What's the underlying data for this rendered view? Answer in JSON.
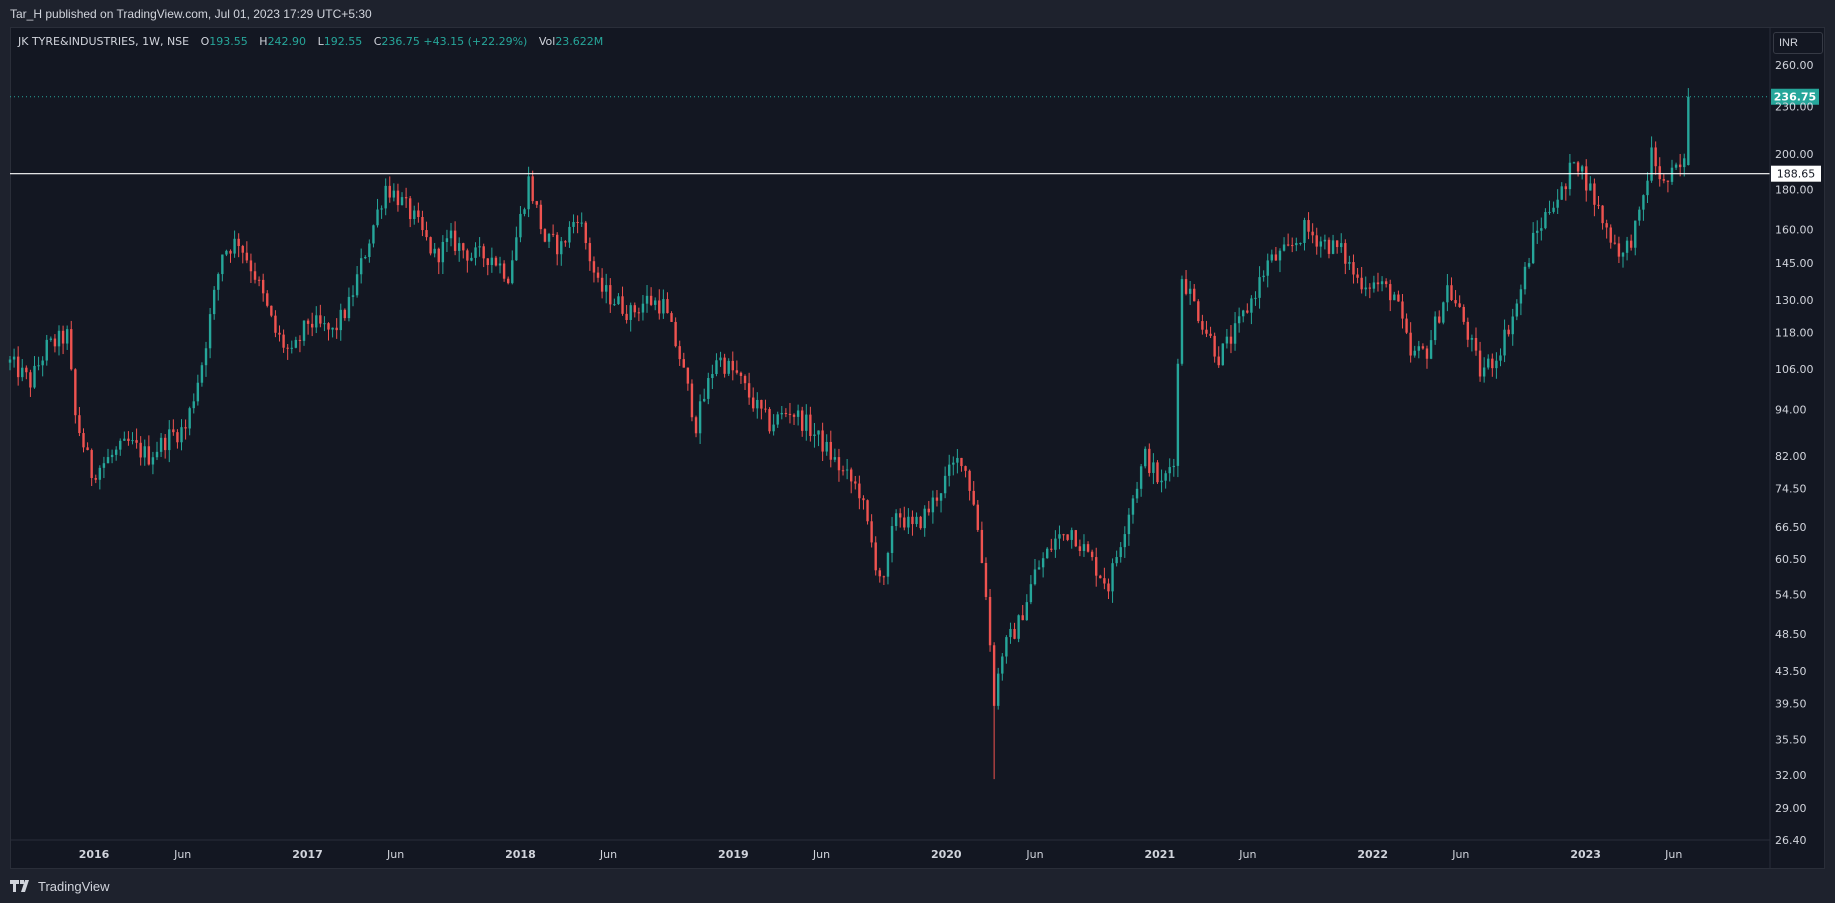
{
  "header": {
    "published_text": "Tar_H published on TradingView.com, Jul 01, 2023 17:29 UTC+5:30"
  },
  "legend": {
    "symbol": "JK TYRE&INDUSTRIES, 1W, NSE",
    "open_label": "O",
    "open": "193.55",
    "high_label": "H",
    "high": "242.90",
    "low_label": "L",
    "low": "192.55",
    "close_label": "C",
    "close": "236.75",
    "change": "+43.15 (+22.29%)",
    "vol_label": "Vol",
    "volume": "23.622M"
  },
  "currency_button": "INR",
  "footer": {
    "brand": "TradingView"
  },
  "colors": {
    "up": "#26a69a",
    "down": "#ef5350",
    "background": "#131722",
    "frame": "#1e222d",
    "text": "#d1d4dc"
  },
  "chart_data": {
    "type": "candlestick",
    "scale": "log",
    "symbol": "JK TYRE&INDUSTRIES",
    "interval": "1W",
    "exchange": "NSE",
    "currency": "INR",
    "ylim": [
      26.4,
      290
    ],
    "y_ticks": [
      "260.00",
      "230.00",
      "200.00",
      "180.00",
      "160.00",
      "145.00",
      "130.00",
      "118.00",
      "106.00",
      "94.00",
      "82.00",
      "74.50",
      "66.50",
      "60.50",
      "54.50",
      "48.50",
      "43.50",
      "39.50",
      "35.50",
      "32.00",
      "29.00",
      "26.40"
    ],
    "x_ticks": [
      {
        "label": "2016",
        "bold": true,
        "date": "2016-01-01"
      },
      {
        "label": "Jun",
        "bold": false,
        "date": "2016-06-01"
      },
      {
        "label": "2017",
        "bold": true,
        "date": "2017-01-01"
      },
      {
        "label": "Jun",
        "bold": false,
        "date": "2017-06-01"
      },
      {
        "label": "2018",
        "bold": true,
        "date": "2018-01-01"
      },
      {
        "label": "Jun",
        "bold": false,
        "date": "2018-06-01"
      },
      {
        "label": "2019",
        "bold": true,
        "date": "2019-01-01"
      },
      {
        "label": "Jun",
        "bold": false,
        "date": "2019-06-01"
      },
      {
        "label": "2020",
        "bold": true,
        "date": "2020-01-01"
      },
      {
        "label": "Jun",
        "bold": false,
        "date": "2020-06-01"
      },
      {
        "label": "2021",
        "bold": true,
        "date": "2021-01-01"
      },
      {
        "label": "Jun",
        "bold": false,
        "date": "2021-06-01"
      },
      {
        "label": "2022",
        "bold": true,
        "date": "2022-01-01"
      },
      {
        "label": "Jun",
        "bold": false,
        "date": "2022-06-01"
      },
      {
        "label": "2023",
        "bold": true,
        "date": "2023-01-01"
      },
      {
        "label": "Jun",
        "bold": false,
        "date": "2023-06-01"
      }
    ],
    "x_range": [
      "2015-08-10",
      "2023-11-13"
    ],
    "horizontal_line": {
      "value": 188.65,
      "label": "188.65"
    },
    "last_price": {
      "value": 236.75,
      "label": "236.75"
    },
    "close_path": [
      {
        "date": "2015-08-10",
        "close": 108
      },
      {
        "date": "2015-09-14",
        "close": 102
      },
      {
        "date": "2015-10-12",
        "close": 113
      },
      {
        "date": "2015-11-16",
        "close": 117
      },
      {
        "date": "2015-11-30",
        "close": 92
      },
      {
        "date": "2015-12-28",
        "close": 78
      },
      {
        "date": "2016-02-01",
        "close": 82
      },
      {
        "date": "2016-02-29",
        "close": 85
      },
      {
        "date": "2016-04-04",
        "close": 82
      },
      {
        "date": "2016-05-09",
        "close": 87
      },
      {
        "date": "2016-06-06",
        "close": 89
      },
      {
        "date": "2016-07-04",
        "close": 108
      },
      {
        "date": "2016-08-08",
        "close": 150
      },
      {
        "date": "2016-09-05",
        "close": 155
      },
      {
        "date": "2016-10-03",
        "close": 140
      },
      {
        "date": "2016-11-07",
        "close": 118
      },
      {
        "date": "2016-12-05",
        "close": 110
      },
      {
        "date": "2017-01-02",
        "close": 122
      },
      {
        "date": "2017-02-13",
        "close": 118
      },
      {
        "date": "2017-03-13",
        "close": 128
      },
      {
        "date": "2017-04-10",
        "close": 150
      },
      {
        "date": "2017-05-15",
        "close": 182
      },
      {
        "date": "2017-06-05",
        "close": 176
      },
      {
        "date": "2017-07-03",
        "close": 165
      },
      {
        "date": "2017-08-07",
        "close": 148
      },
      {
        "date": "2017-09-04",
        "close": 155
      },
      {
        "date": "2017-10-09",
        "close": 148
      },
      {
        "date": "2017-11-13",
        "close": 148
      },
      {
        "date": "2017-12-11",
        "close": 140
      },
      {
        "date": "2018-01-15",
        "close": 185
      },
      {
        "date": "2018-02-12",
        "close": 155
      },
      {
        "date": "2018-03-12",
        "close": 152
      },
      {
        "date": "2018-04-09",
        "close": 168
      },
      {
        "date": "2018-05-14",
        "close": 135
      },
      {
        "date": "2018-06-11",
        "close": 130
      },
      {
        "date": "2018-07-09",
        "close": 125
      },
      {
        "date": "2018-08-06",
        "close": 130
      },
      {
        "date": "2018-09-03",
        "close": 128
      },
      {
        "date": "2018-10-01",
        "close": 110
      },
      {
        "date": "2018-10-29",
        "close": 90
      },
      {
        "date": "2018-12-03",
        "close": 110
      },
      {
        "date": "2019-01-07",
        "close": 104
      },
      {
        "date": "2019-02-04",
        "close": 96
      },
      {
        "date": "2019-03-04",
        "close": 90
      },
      {
        "date": "2019-04-08",
        "close": 94
      },
      {
        "date": "2019-05-06",
        "close": 90
      },
      {
        "date": "2019-06-03",
        "close": 85
      },
      {
        "date": "2019-07-08",
        "close": 78
      },
      {
        "date": "2019-08-05",
        "close": 74
      },
      {
        "date": "2019-09-02",
        "close": 60
      },
      {
        "date": "2019-09-16",
        "close": 56
      },
      {
        "date": "2019-10-07",
        "close": 70
      },
      {
        "date": "2019-11-04",
        "close": 66
      },
      {
        "date": "2019-12-02",
        "close": 70
      },
      {
        "date": "2020-01-06",
        "close": 78
      },
      {
        "date": "2020-01-27",
        "close": 82
      },
      {
        "date": "2020-02-17",
        "close": 72
      },
      {
        "date": "2020-03-09",
        "close": 55
      },
      {
        "date": "2020-03-23",
        "close": 40
      },
      {
        "date": "2020-04-06",
        "close": 46
      },
      {
        "date": "2020-05-04",
        "close": 50
      },
      {
        "date": "2020-06-01",
        "close": 58
      },
      {
        "date": "2020-07-06",
        "close": 64
      },
      {
        "date": "2020-08-03",
        "close": 66
      },
      {
        "date": "2020-09-07",
        "close": 60
      },
      {
        "date": "2020-10-05",
        "close": 56
      },
      {
        "date": "2020-11-09",
        "close": 70
      },
      {
        "date": "2020-12-07",
        "close": 82
      },
      {
        "date": "2021-01-04",
        "close": 75
      },
      {
        "date": "2021-01-25",
        "close": 82
      },
      {
        "date": "2021-02-08",
        "close": 140
      },
      {
        "date": "2021-03-08",
        "close": 125
      },
      {
        "date": "2021-04-12",
        "close": 110
      },
      {
        "date": "2021-05-10",
        "close": 118
      },
      {
        "date": "2021-06-07",
        "close": 130
      },
      {
        "date": "2021-07-05",
        "close": 145
      },
      {
        "date": "2021-08-09",
        "close": 150
      },
      {
        "date": "2021-09-06",
        "close": 160
      },
      {
        "date": "2021-10-04",
        "close": 155
      },
      {
        "date": "2021-11-08",
        "close": 150
      },
      {
        "date": "2021-12-06",
        "close": 138
      },
      {
        "date": "2022-01-10",
        "close": 136
      },
      {
        "date": "2022-02-07",
        "close": 132
      },
      {
        "date": "2022-03-07",
        "close": 110
      },
      {
        "date": "2022-04-04",
        "close": 112
      },
      {
        "date": "2022-05-09",
        "close": 135
      },
      {
        "date": "2022-06-06",
        "close": 122
      },
      {
        "date": "2022-07-04",
        "close": 105
      },
      {
        "date": "2022-08-01",
        "close": 110
      },
      {
        "date": "2022-09-05",
        "close": 128
      },
      {
        "date": "2022-10-03",
        "close": 155
      },
      {
        "date": "2022-11-07",
        "close": 175
      },
      {
        "date": "2022-11-28",
        "close": 180
      },
      {
        "date": "2022-12-12",
        "close": 200
      },
      {
        "date": "2023-01-09",
        "close": 180
      },
      {
        "date": "2023-02-06",
        "close": 160
      },
      {
        "date": "2023-03-06",
        "close": 148
      },
      {
        "date": "2023-04-03",
        "close": 165
      },
      {
        "date": "2023-04-24",
        "close": 200
      },
      {
        "date": "2023-05-15",
        "close": 182
      },
      {
        "date": "2023-06-05",
        "close": 190
      },
      {
        "date": "2023-06-19",
        "close": 193.55
      },
      {
        "date": "2023-06-26",
        "close": 236.75
      }
    ],
    "price_extremes": [
      {
        "date": "2020-03-23",
        "low": 31.6
      },
      {
        "date": "2023-06-26",
        "high": 242.9
      }
    ]
  }
}
